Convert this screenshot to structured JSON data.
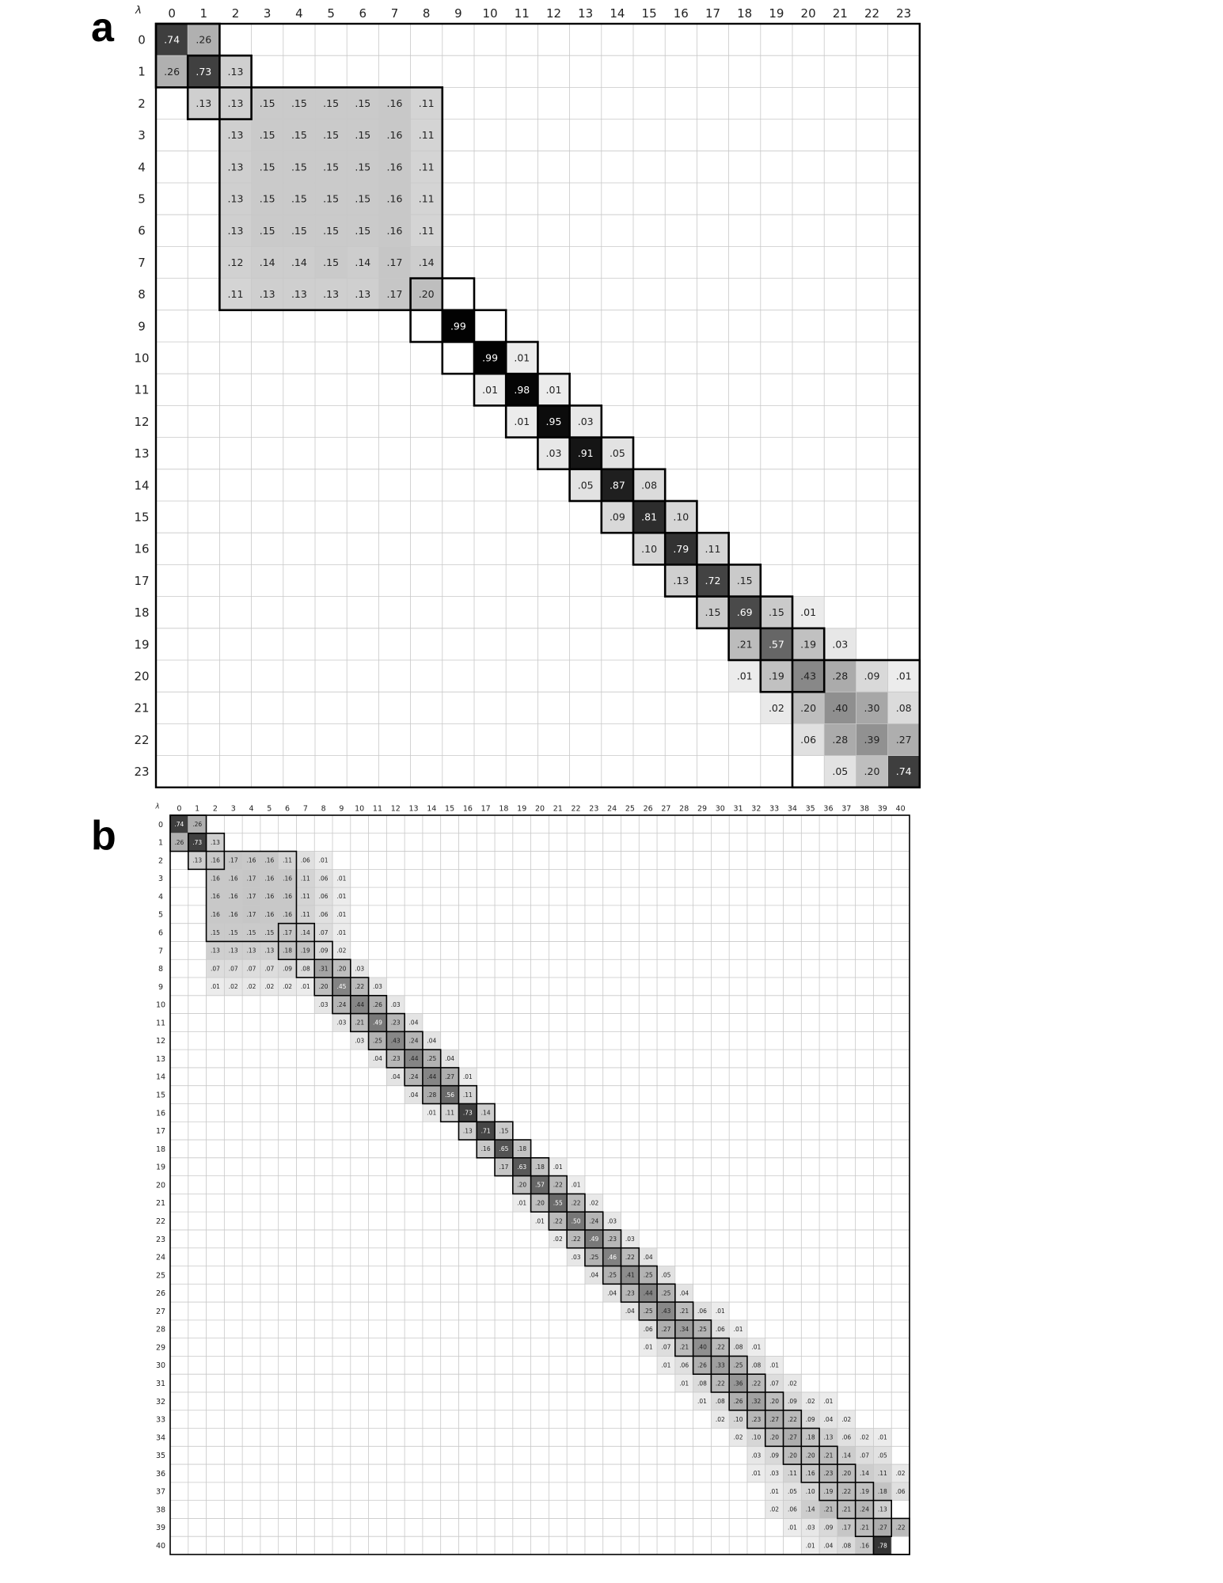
{
  "chart_data": [
    {
      "type": "heatmap",
      "panel_label": "a",
      "corner_label": "λ",
      "n": 24,
      "x_ticks": [
        "0",
        "1",
        "2",
        "3",
        "4",
        "5",
        "6",
        "7",
        "8",
        "9",
        "10",
        "11",
        "12",
        "13",
        "14",
        "15",
        "16",
        "17",
        "18",
        "19",
        "20",
        "21",
        "22",
        "23"
      ],
      "y_ticks": [
        "0",
        "1",
        "2",
        "3",
        "4",
        "5",
        "6",
        "7",
        "8",
        "9",
        "10",
        "11",
        "12",
        "13",
        "14",
        "15",
        "16",
        "17",
        "18",
        "19",
        "20",
        "21",
        "22",
        "23"
      ],
      "rows": [
        {
          "start": 0,
          "values": [
            ".74",
            ".26"
          ]
        },
        {
          "start": 0,
          "values": [
            ".26",
            ".73",
            ".13"
          ]
        },
        {
          "start": 1,
          "values": [
            ".13",
            ".13",
            ".15",
            ".15",
            ".15",
            ".15",
            ".16",
            ".11"
          ]
        },
        {
          "start": 2,
          "values": [
            ".13",
            ".15",
            ".15",
            ".15",
            ".15",
            ".16",
            ".11"
          ]
        },
        {
          "start": 2,
          "values": [
            ".13",
            ".15",
            ".15",
            ".15",
            ".15",
            ".16",
            ".11"
          ]
        },
        {
          "start": 2,
          "values": [
            ".13",
            ".15",
            ".15",
            ".15",
            ".15",
            ".16",
            ".11"
          ]
        },
        {
          "start": 2,
          "values": [
            ".13",
            ".15",
            ".15",
            ".15",
            ".15",
            ".16",
            ".11"
          ]
        },
        {
          "start": 2,
          "values": [
            ".12",
            ".14",
            ".14",
            ".15",
            ".14",
            ".17",
            ".14"
          ]
        },
        {
          "start": 2,
          "values": [
            ".11",
            ".13",
            ".13",
            ".13",
            ".13",
            ".17",
            ".20"
          ]
        },
        {
          "start": 9,
          "values": [
            ".99"
          ]
        },
        {
          "start": 10,
          "values": [
            ".99",
            ".01"
          ]
        },
        {
          "start": 10,
          "values": [
            ".01",
            ".98",
            ".01"
          ]
        },
        {
          "start": 11,
          "values": [
            ".01",
            ".95",
            ".03"
          ]
        },
        {
          "start": 12,
          "values": [
            ".03",
            ".91",
            ".05"
          ]
        },
        {
          "start": 13,
          "values": [
            ".05",
            ".87",
            ".08"
          ]
        },
        {
          "start": 14,
          "values": [
            ".09",
            ".81",
            ".10"
          ]
        },
        {
          "start": 15,
          "values": [
            ".10",
            ".79",
            ".11"
          ]
        },
        {
          "start": 16,
          "values": [
            ".13",
            ".72",
            ".15"
          ]
        },
        {
          "start": 17,
          "values": [
            ".15",
            ".69",
            ".15",
            ".01"
          ]
        },
        {
          "start": 18,
          "values": [
            ".21",
            ".57",
            ".19",
            ".03"
          ]
        },
        {
          "start": 18,
          "values": [
            ".01",
            ".19",
            ".43",
            ".28",
            ".09",
            ".01"
          ]
        },
        {
          "start": 19,
          "values": [
            ".02",
            ".20",
            ".40",
            ".30",
            ".08"
          ]
        },
        {
          "start": 20,
          "values": [
            ".06",
            ".28",
            ".39",
            ".27"
          ]
        },
        {
          "start": 21,
          "values": [
            ".05",
            ".20",
            ".74"
          ]
        }
      ],
      "blocks": [
        [
          0,
          1
        ],
        [
          1,
          2
        ],
        [
          2,
          8
        ],
        [
          8,
          9
        ],
        [
          9,
          10
        ],
        [
          10,
          11
        ],
        [
          11,
          12
        ],
        [
          12,
          13
        ],
        [
          13,
          14
        ],
        [
          14,
          15
        ],
        [
          15,
          16
        ],
        [
          16,
          17
        ],
        [
          17,
          18
        ],
        [
          18,
          19
        ],
        [
          19,
          20
        ],
        [
          20,
          23
        ]
      ]
    },
    {
      "type": "heatmap",
      "panel_label": "b",
      "corner_label": "λ",
      "n": 41,
      "x_ticks": [
        "0",
        "1",
        "2",
        "3",
        "4",
        "5",
        "6",
        "7",
        "8",
        "9",
        "10",
        "11",
        "12",
        "13",
        "14",
        "15",
        "16",
        "17",
        "18",
        "19",
        "20",
        "21",
        "22",
        "23",
        "24",
        "25",
        "26",
        "27",
        "28",
        "29",
        "30",
        "31",
        "32",
        "33",
        "34",
        "35",
        "36",
        "37",
        "38",
        "39",
        "40"
      ],
      "y_ticks": [
        "0",
        "1",
        "2",
        "3",
        "4",
        "5",
        "6",
        "7",
        "8",
        "9",
        "10",
        "11",
        "12",
        "13",
        "14",
        "15",
        "16",
        "17",
        "18",
        "19",
        "20",
        "21",
        "22",
        "23",
        "24",
        "25",
        "26",
        "27",
        "28",
        "29",
        "30",
        "31",
        "32",
        "33",
        "34",
        "35",
        "36",
        "37",
        "38",
        "39",
        "40"
      ],
      "rows": [
        {
          "start": 0,
          "values": [
            ".74",
            ".26"
          ]
        },
        {
          "start": 0,
          "values": [
            ".26",
            ".73",
            ".13"
          ]
        },
        {
          "start": 1,
          "values": [
            ".13",
            ".16",
            ".17",
            ".16",
            ".16",
            ".11",
            ".06",
            ".01"
          ]
        },
        {
          "start": 2,
          "values": [
            ".16",
            ".16",
            ".17",
            ".16",
            ".16",
            ".11",
            ".06",
            ".01"
          ]
        },
        {
          "start": 2,
          "values": [
            ".16",
            ".16",
            ".17",
            ".16",
            ".16",
            ".11",
            ".06",
            ".01"
          ]
        },
        {
          "start": 2,
          "values": [
            ".16",
            ".16",
            ".17",
            ".16",
            ".16",
            ".11",
            ".06",
            ".01"
          ]
        },
        {
          "start": 2,
          "values": [
            ".15",
            ".15",
            ".15",
            ".15",
            ".17",
            ".14",
            ".07",
            ".01"
          ]
        },
        {
          "start": 2,
          "values": [
            ".13",
            ".13",
            ".13",
            ".13",
            ".18",
            ".19",
            ".09",
            ".02"
          ]
        },
        {
          "start": 2,
          "values": [
            ".07",
            ".07",
            ".07",
            ".07",
            ".09",
            ".08",
            ".31",
            ".20",
            ".03"
          ]
        },
        {
          "start": 2,
          "values": [
            ".01",
            ".02",
            ".02",
            ".02",
            ".02",
            ".01",
            ".20",
            ".45",
            ".22",
            ".03"
          ]
        },
        {
          "start": 8,
          "values": [
            ".03",
            ".24",
            ".44",
            ".26",
            ".03"
          ]
        },
        {
          "start": 9,
          "values": [
            ".03",
            ".21",
            ".49",
            ".23",
            ".04"
          ]
        },
        {
          "start": 10,
          "values": [
            ".03",
            ".25",
            ".43",
            ".24",
            ".04"
          ]
        },
        {
          "start": 11,
          "values": [
            ".04",
            ".23",
            ".44",
            ".25",
            ".04"
          ]
        },
        {
          "start": 12,
          "values": [
            ".04",
            ".24",
            ".44",
            ".27",
            ".01"
          ]
        },
        {
          "start": 13,
          "values": [
            ".04",
            ".28",
            ".56",
            ".11"
          ]
        },
        {
          "start": 14,
          "values": [
            ".01",
            ".11",
            ".73",
            ".14"
          ]
        },
        {
          "start": 16,
          "values": [
            ".13",
            ".71",
            ".15"
          ]
        },
        {
          "start": 17,
          "values": [
            ".16",
            ".65",
            ".18"
          ]
        },
        {
          "start": 18,
          "values": [
            ".17",
            ".63",
            ".18",
            ".01"
          ]
        },
        {
          "start": 19,
          "values": [
            ".20",
            ".57",
            ".22",
            ".01"
          ]
        },
        {
          "start": 19,
          "values": [
            ".01",
            ".20",
            ".55",
            ".22",
            ".02"
          ]
        },
        {
          "start": 20,
          "values": [
            ".01",
            ".22",
            ".50",
            ".24",
            ".03"
          ]
        },
        {
          "start": 21,
          "values": [
            ".02",
            ".22",
            ".49",
            ".23",
            ".03"
          ]
        },
        {
          "start": 22,
          "values": [
            ".03",
            ".25",
            ".46",
            ".22",
            ".04"
          ]
        },
        {
          "start": 23,
          "values": [
            ".04",
            ".25",
            ".41",
            ".25",
            ".05"
          ]
        },
        {
          "start": 24,
          "values": [
            ".04",
            ".23",
            ".44",
            ".25",
            ".04"
          ]
        },
        {
          "start": 25,
          "values": [
            ".04",
            ".25",
            ".43",
            ".21",
            ".06",
            ".01"
          ]
        },
        {
          "start": 26,
          "values": [
            ".06",
            ".27",
            ".34",
            ".25",
            ".06",
            ".01"
          ]
        },
        {
          "start": 26,
          "values": [
            ".01",
            ".07",
            ".21",
            ".40",
            ".22",
            ".08",
            ".01"
          ]
        },
        {
          "start": 27,
          "values": [
            ".01",
            ".06",
            ".26",
            ".33",
            ".25",
            ".08",
            ".01"
          ]
        },
        {
          "start": 28,
          "values": [
            ".01",
            ".08",
            ".22",
            ".36",
            ".22",
            ".07",
            ".02"
          ]
        },
        {
          "start": 29,
          "values": [
            ".01",
            ".08",
            ".26",
            ".32",
            ".20",
            ".09",
            ".02",
            ".01"
          ]
        },
        {
          "start": 30,
          "values": [
            ".02",
            ".10",
            ".23",
            ".27",
            ".22",
            ".09",
            ".04",
            ".02"
          ]
        },
        {
          "start": 31,
          "values": [
            ".02",
            ".10",
            ".20",
            ".27",
            ".18",
            ".13",
            ".06",
            ".02",
            ".01"
          ]
        },
        {
          "start": 32,
          "values": [
            ".03",
            ".09",
            ".20",
            ".20",
            ".21",
            ".14",
            ".07",
            ".05"
          ]
        },
        {
          "start": 32,
          "values": [
            ".01",
            ".03",
            ".11",
            ".16",
            ".23",
            ".20",
            ".14",
            ".11",
            ".02"
          ]
        },
        {
          "start": 33,
          "values": [
            ".01",
            ".05",
            ".10",
            ".19",
            ".22",
            ".19",
            ".18",
            ".06"
          ]
        },
        {
          "start": 33,
          "values": [
            ".02",
            ".06",
            ".14",
            ".21",
            ".21",
            ".24",
            ".13"
          ]
        },
        {
          "start": 34,
          "values": [
            ".01",
            ".03",
            ".09",
            ".17",
            ".21",
            ".27",
            ".22"
          ]
        },
        {
          "start": 35,
          "values": [
            ".01",
            ".04",
            ".08",
            ".16",
            ".78"
          ]
        }
      ],
      "blocks": [
        [
          0,
          1
        ],
        [
          1,
          2
        ],
        [
          2,
          6
        ],
        [
          6,
          7
        ],
        [
          7,
          8
        ],
        [
          8,
          9
        ],
        [
          9,
          10
        ],
        [
          10,
          11
        ],
        [
          11,
          12
        ],
        [
          12,
          13
        ],
        [
          13,
          14
        ],
        [
          14,
          15
        ],
        [
          15,
          16
        ],
        [
          16,
          17
        ],
        [
          17,
          18
        ],
        [
          18,
          19
        ],
        [
          19,
          20
        ],
        [
          20,
          21
        ],
        [
          21,
          22
        ],
        [
          22,
          23
        ],
        [
          23,
          24
        ],
        [
          24,
          25
        ],
        [
          25,
          26
        ],
        [
          26,
          27
        ],
        [
          27,
          28
        ],
        [
          28,
          29
        ],
        [
          29,
          30
        ],
        [
          30,
          31
        ],
        [
          31,
          32
        ],
        [
          32,
          33
        ],
        [
          33,
          34
        ],
        [
          34,
          35
        ],
        [
          35,
          36
        ],
        [
          36,
          37
        ],
        [
          37,
          38
        ],
        [
          38,
          39
        ],
        [
          39,
          40
        ]
      ]
    }
  ]
}
